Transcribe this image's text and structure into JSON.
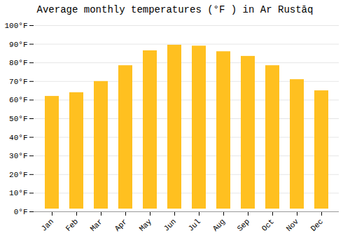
{
  "chart_data": {
    "type": "bar",
    "title": "Average monthly temperatures (°F ) in Ar Rustāq",
    "categories": [
      "Jan",
      "Feb",
      "Mar",
      "Apr",
      "May",
      "Jun",
      "Jul",
      "Aug",
      "Sep",
      "Oct",
      "Nov",
      "Dec"
    ],
    "values": [
      63.5,
      65.5,
      71.5,
      80.0,
      88.0,
      91.0,
      90.5,
      87.5,
      85.0,
      80.0,
      72.5,
      66.5
    ],
    "color": "#FFC020",
    "ylim": [
      0,
      100
    ],
    "yticks": [
      {
        "value": 0,
        "label": "0°F"
      },
      {
        "value": 10,
        "label": "10°F"
      },
      {
        "value": 20,
        "label": "20°F"
      },
      {
        "value": 30,
        "label": "30°F"
      },
      {
        "value": 40,
        "label": "40°F"
      },
      {
        "value": 50,
        "label": "50°F"
      },
      {
        "value": 60,
        "label": "60°F"
      },
      {
        "value": 70,
        "label": "70°F"
      },
      {
        "value": 80,
        "label": "80°F"
      },
      {
        "value": 90,
        "label": "90°F"
      },
      {
        "value": 100,
        "label": "100°F"
      }
    ],
    "grid": true
  }
}
